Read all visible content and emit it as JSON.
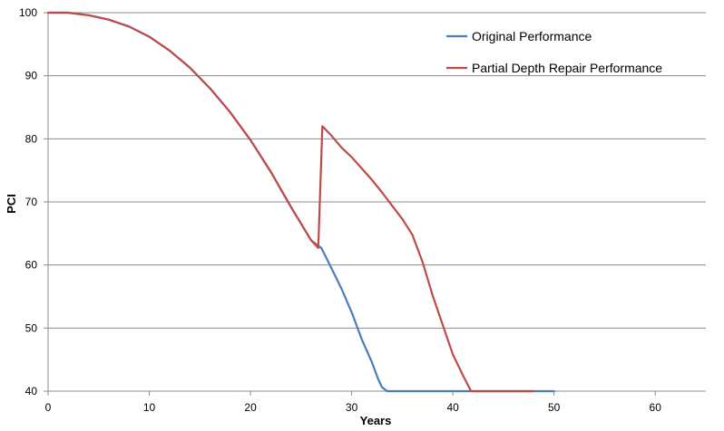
{
  "chart_data": {
    "type": "line",
    "title": "",
    "xlabel": "Years",
    "ylabel": "PCI",
    "xlim": [
      0,
      65
    ],
    "ylim": [
      40,
      100
    ],
    "xticks": [
      0,
      10,
      20,
      30,
      40,
      50,
      60
    ],
    "yticks": [
      40,
      50,
      60,
      70,
      80,
      90,
      100
    ],
    "grid": "horizontal",
    "legend_position": "top-right",
    "series": [
      {
        "name": "Original Performance",
        "color": "#4a7ebb",
        "points": [
          [
            0,
            100
          ],
          [
            2,
            100
          ],
          [
            4,
            99.6
          ],
          [
            6,
            98.9
          ],
          [
            8,
            97.8
          ],
          [
            10,
            96.2
          ],
          [
            12,
            94
          ],
          [
            14,
            91.3
          ],
          [
            16,
            88
          ],
          [
            18,
            84.2
          ],
          [
            20,
            79.8
          ],
          [
            22,
            74.8
          ],
          [
            24,
            69.2
          ],
          [
            26,
            63.9
          ],
          [
            27,
            62.7
          ],
          [
            28,
            59.5
          ],
          [
            29,
            56.2
          ],
          [
            30,
            52.5
          ],
          [
            31,
            48.2
          ],
          [
            32,
            44.6
          ],
          [
            32.6,
            42
          ],
          [
            33,
            40.6
          ],
          [
            33.5,
            40
          ],
          [
            50,
            40
          ]
        ]
      },
      {
        "name": "Partial Depth Repair Performance",
        "color": "#be4b48",
        "points": [
          [
            0,
            100
          ],
          [
            2,
            100
          ],
          [
            4,
            99.6
          ],
          [
            6,
            98.9
          ],
          [
            8,
            97.8
          ],
          [
            10,
            96.2
          ],
          [
            12,
            94
          ],
          [
            14,
            91.3
          ],
          [
            16,
            88
          ],
          [
            18,
            84.2
          ],
          [
            20,
            79.8
          ],
          [
            22,
            74.8
          ],
          [
            24,
            69.2
          ],
          [
            26,
            63.9
          ],
          [
            26.7,
            62.7
          ],
          [
            27.1,
            82
          ],
          [
            28,
            80.5
          ],
          [
            29,
            78.6
          ],
          [
            30,
            77.1
          ],
          [
            31,
            75.3
          ],
          [
            32,
            73.5
          ],
          [
            33,
            71.5
          ],
          [
            34,
            69.4
          ],
          [
            35,
            67.3
          ],
          [
            36,
            64.8
          ],
          [
            37,
            60.5
          ],
          [
            38,
            55.2
          ],
          [
            39,
            50.5
          ],
          [
            40,
            45.8
          ],
          [
            41,
            42.5
          ],
          [
            41.8,
            40
          ],
          [
            48,
            40
          ]
        ]
      }
    ]
  }
}
